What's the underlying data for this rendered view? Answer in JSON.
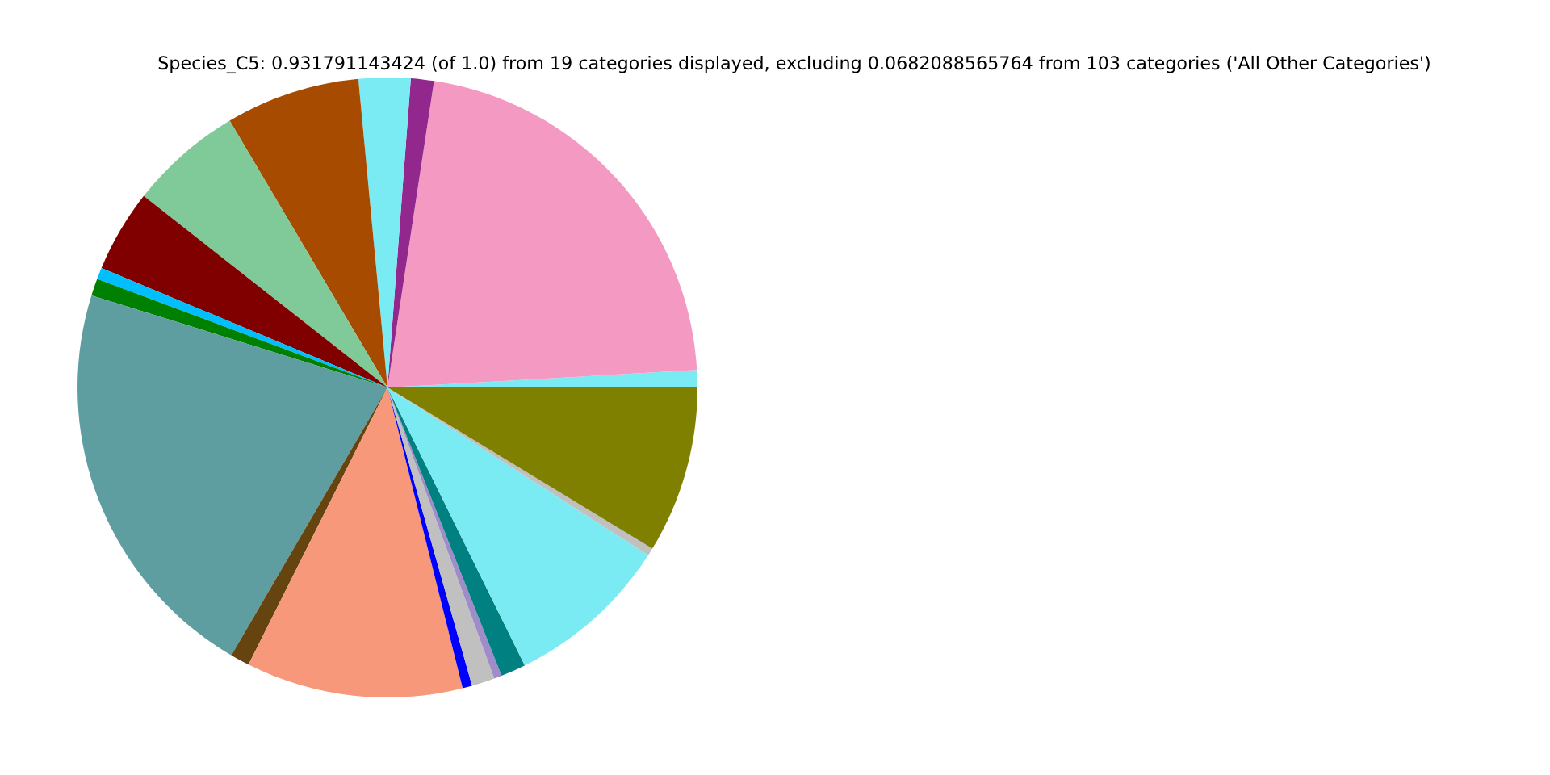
{
  "chart_data": {
    "type": "pie",
    "title": "Species_C5: 0.931791143424 (of 1.0) from 19 categories displayed, excluding 0.0682088565764 from 103 categories ('All Other Categories')",
    "categories": [
      null,
      null,
      null,
      null,
      null,
      null,
      null,
      null,
      null,
      null,
      null,
      null,
      null,
      null,
      null,
      null,
      null,
      null,
      null
    ],
    "values": [
      0.9,
      21.7,
      1.2,
      2.7,
      7.0,
      5.9,
      4.3,
      0.6,
      0.9,
      21.4,
      1.0,
      11.3,
      0.5,
      1.2,
      0.4,
      1.3,
      8.6,
      0.4,
      8.7
    ],
    "colors": [
      "#7aebf2",
      "#f49ac2",
      "#92288e",
      "#7aebf2",
      "#a64b00",
      "#80c999",
      "#800000",
      "#00bfff",
      "#008000",
      "#5f9ea0",
      "#664410",
      "#f8987a",
      "#0000ff",
      "#c0c0c0",
      "#a08cc8",
      "#008080",
      "#7aebf2",
      "#c0c0c0",
      "#808000"
    ]
  }
}
